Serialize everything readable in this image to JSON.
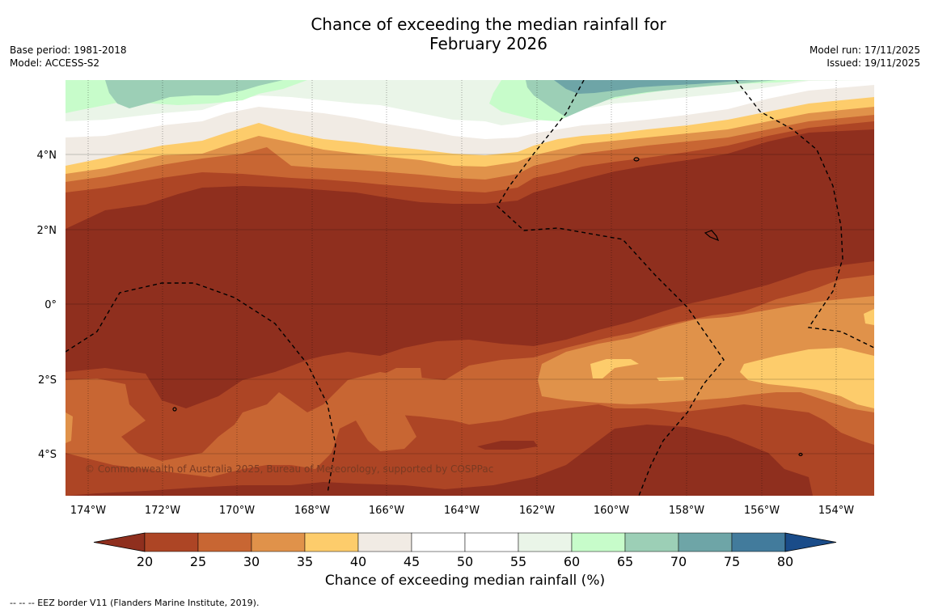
{
  "title_line1": "Chance of exceeding the median rainfall for",
  "title_line2": "February 2026",
  "meta_left": [
    "Base period: 1981-2018",
    "Model: ACCESS-S2"
  ],
  "meta_right": [
    "Model run: 17/11/2025",
    "Issued: 19/11/2025"
  ],
  "copyright": "© Commonwealth of Australia 2025, Bureau of Meteorology, supported by COSPPac",
  "lon_labels": [
    "174°W",
    "172°W",
    "170°W",
    "168°W",
    "166°W",
    "164°W",
    "162°W",
    "160°W",
    "158°W",
    "156°W",
    "154°W"
  ],
  "lat_labels": [
    "4°N",
    "2°N",
    "0°",
    "2°S",
    "4°S"
  ],
  "colorbar": {
    "ticks": [
      "20",
      "25",
      "30",
      "35",
      "40",
      "45",
      "50",
      "55",
      "60",
      "65",
      "70",
      "75",
      "80"
    ],
    "colors": [
      "#8f2f1e",
      "#ad4525",
      "#c86633",
      "#e0924a",
      "#fdcc6b",
      "#f1ebe4",
      "#ffffff",
      "#ffffff",
      "#eaf5e8",
      "#c7fcca",
      "#9ccfb6",
      "#6ea5a7",
      "#427b9c",
      "#1a4c89"
    ],
    "title": "Chance of exceeding median rainfall (%)"
  },
  "footnote": "--  --  -- EEZ border V11 (Flanders Marine Institute, 2019)."
}
